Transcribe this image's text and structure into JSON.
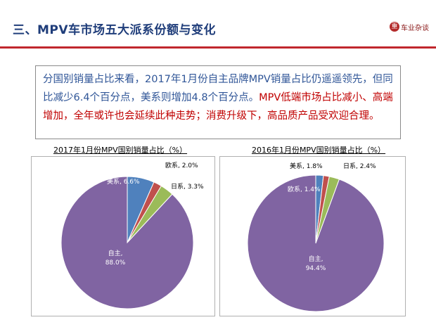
{
  "header": {
    "title": "三、MPV车市场五大派系份额与变化",
    "logo_text": "车业杂谈",
    "logo_badge": "重"
  },
  "summary": {
    "part1": "分国别销量占比来看，2017年1月份自主品牌MPV销量占比仍遥遥领先，但同比减少6.4个百分点，美系则增加4.8个百分点。",
    "part2": "MPV低端市场占比减小、高端增加，全年或许也会延续此种走势；消费升级下，高品质产品受欢迎合理。"
  },
  "colors": {
    "title": "#1f3d7a",
    "rule": "#c0272d",
    "summary_text": "#2f5597",
    "summary_highlight": "#c00000",
    "slice_meixi": "#4f81bd",
    "slice_ouxi": "#c0504d",
    "slice_rixi": "#9bbb59",
    "slice_zizhu": "#8064a2"
  },
  "chart_data": [
    {
      "type": "pie",
      "title": "2017年1月份MPV国别销量占比（%）",
      "slices": [
        {
          "name": "美系",
          "value": 6.6,
          "label": "美系, 6.6%",
          "color": "#4f81bd",
          "label_inside": true
        },
        {
          "name": "欧系",
          "value": 2.0,
          "label": "欧系, 2.0%",
          "color": "#c0504d",
          "label_inside": false
        },
        {
          "name": "日系",
          "value": 3.3,
          "label": "日系, 3.3%",
          "color": "#9bbb59",
          "label_inside": false
        },
        {
          "name": "自主",
          "value": 88.0,
          "label": "自主,\n88.0%",
          "color": "#8064a2",
          "label_inside": true
        }
      ],
      "start": "12 o'clock",
      "direction": "clockwise"
    },
    {
      "type": "pie",
      "title": "2016年1月份MPV国别销量占比（%）",
      "slices": [
        {
          "name": "美系",
          "value": 1.8,
          "label": "美系, 1.8%",
          "color": "#4f81bd",
          "label_inside": false
        },
        {
          "name": "欧系",
          "value": 1.4,
          "label": "欧系, 1.4%",
          "color": "#c0504d",
          "label_inside": true
        },
        {
          "name": "日系",
          "value": 2.4,
          "label": "日系, 2.4%",
          "color": "#9bbb59",
          "label_inside": false
        },
        {
          "name": "自主",
          "value": 94.4,
          "label": "自主,\n94.4%",
          "color": "#8064a2",
          "label_inside": true
        }
      ],
      "start": "12 o'clock",
      "direction": "clockwise"
    }
  ]
}
